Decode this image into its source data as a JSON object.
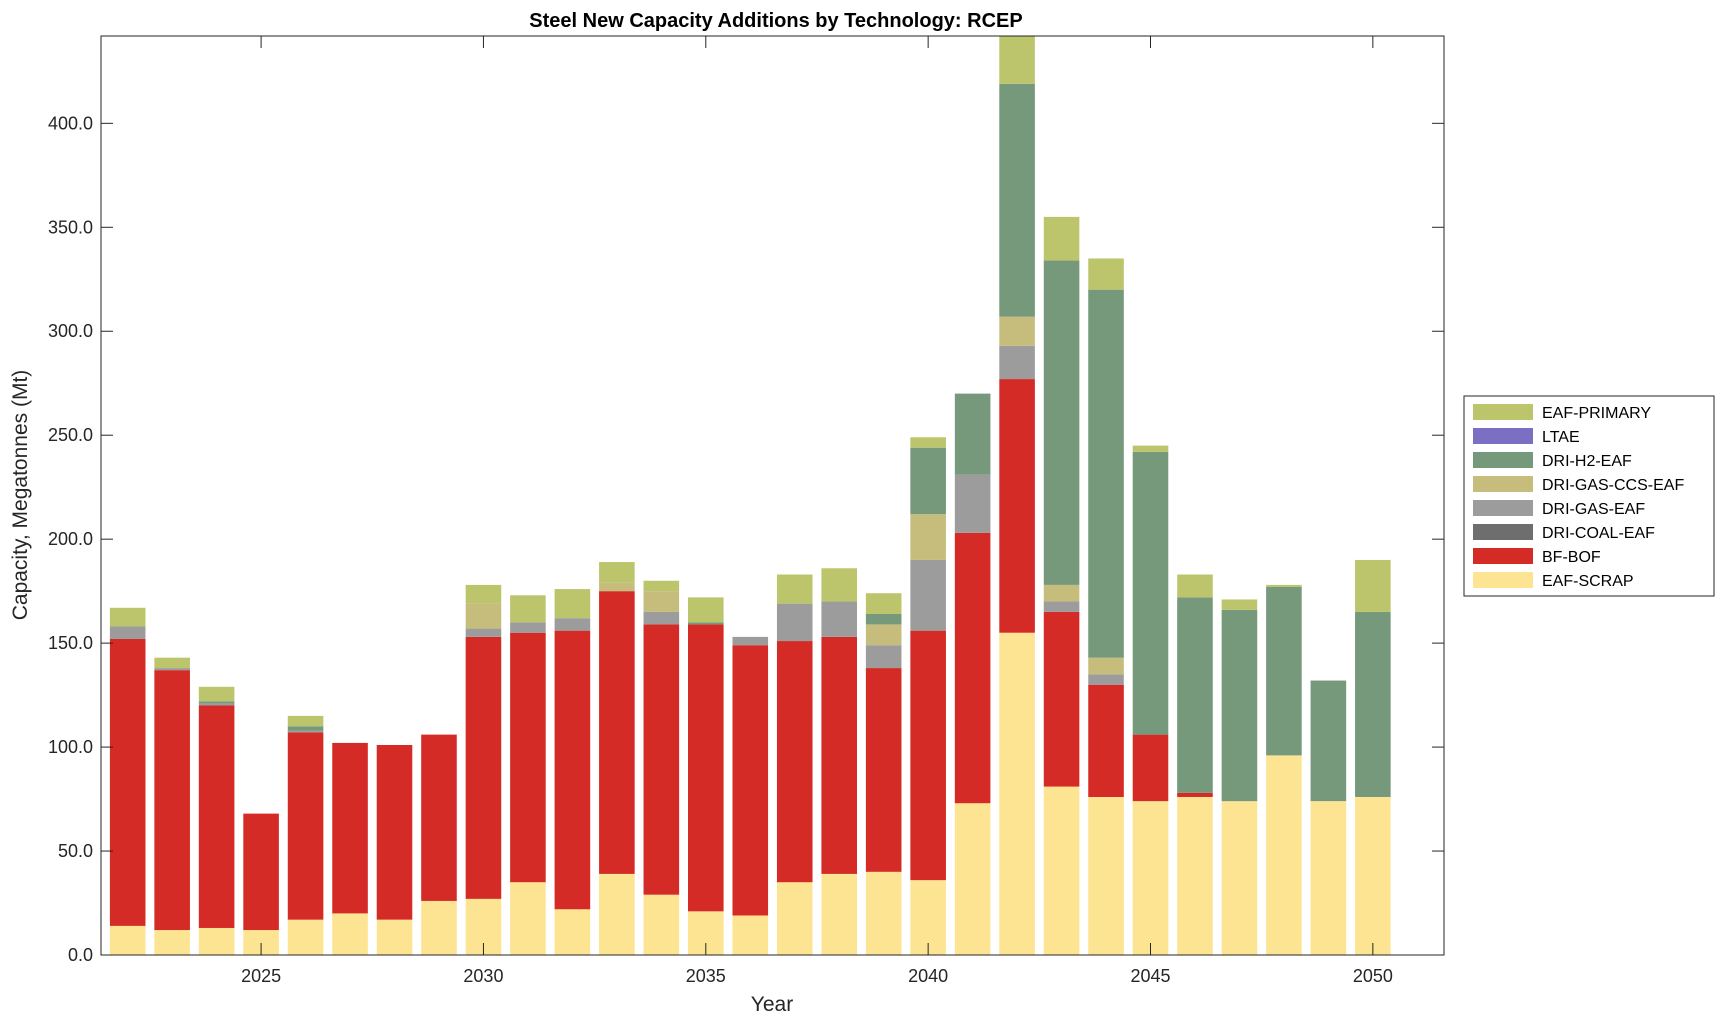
{
  "chart_data": {
    "type": "bar",
    "stacked": true,
    "title": "Steel New Capacity Additions by Technology: RCEP",
    "xlabel": "Year",
    "ylabel": "Capacity, Megatonnes (Mt)",
    "ylim": [
      0,
      442
    ],
    "xlim": [
      2021.4,
      2051.6
    ],
    "yticks": [
      0,
      50,
      100,
      150,
      200,
      250,
      300,
      350,
      400
    ],
    "ytick_labels": [
      "0.0",
      "50.0",
      "100.0",
      "150.0",
      "200.0",
      "250.0",
      "300.0",
      "350.0",
      "400.0"
    ],
    "xticks": [
      2025,
      2030,
      2035,
      2040,
      2045,
      2050
    ],
    "xtick_labels": [
      "2025",
      "2030",
      "2035",
      "2040",
      "2045",
      "2050"
    ],
    "legend_position": "outside-right",
    "years": [
      2022,
      2023,
      2024,
      2025,
      2026,
      2027,
      2028,
      2029,
      2030,
      2031,
      2032,
      2033,
      2034,
      2035,
      2036,
      2037,
      2038,
      2039,
      2040,
      2041,
      2042,
      2043,
      2044,
      2045,
      2046,
      2047,
      2048,
      2049,
      2050
    ],
    "series": [
      {
        "name": "EAF-SCRAP",
        "color": "#FDE493",
        "values": [
          14,
          12,
          13,
          12,
          17,
          20,
          17,
          26,
          27,
          35,
          22,
          39,
          29,
          21,
          19,
          35,
          39,
          40,
          36,
          73,
          155,
          81,
          76,
          74,
          76,
          74,
          96,
          74,
          76
        ]
      },
      {
        "name": "BF-BOF",
        "color": "#D52B26",
        "values": [
          138,
          125,
          107,
          56,
          90,
          82,
          84,
          80,
          126,
          120,
          134,
          136,
          130,
          138,
          130,
          116,
          114,
          98,
          120,
          130,
          122,
          84,
          54,
          32,
          2,
          0,
          0,
          0,
          0
        ]
      },
      {
        "name": "DRI-COAL-EAF",
        "color": "#6E6E6E",
        "values": [
          0,
          0,
          0,
          0,
          0,
          0,
          0,
          0,
          0,
          0,
          0,
          0,
          0,
          0,
          0,
          0,
          0,
          0,
          0,
          0,
          0,
          0,
          0,
          0,
          0,
          0,
          0,
          0,
          0
        ]
      },
      {
        "name": "DRI-GAS-EAF",
        "color": "#9C9C9C",
        "values": [
          6,
          1,
          1,
          0,
          1,
          0,
          0,
          0,
          4,
          5,
          6,
          0,
          6,
          0,
          4,
          18,
          17,
          11,
          34,
          28,
          16,
          5,
          5,
          0,
          0,
          0,
          0,
          0,
          0
        ]
      },
      {
        "name": "DRI-GAS-CCS-EAF",
        "color": "#C6BD7D",
        "values": [
          0,
          0,
          0,
          0,
          0,
          0,
          0,
          0,
          12,
          0,
          0,
          4,
          10,
          0,
          0,
          0,
          0,
          10,
          22,
          0,
          14,
          8,
          8,
          0,
          0,
          0,
          0,
          0,
          0
        ]
      },
      {
        "name": "DRI-H2-EAF",
        "color": "#76987B",
        "values": [
          0,
          0,
          1,
          0,
          2,
          0,
          0,
          0,
          0,
          0,
          0,
          0,
          0,
          1,
          0,
          0,
          0,
          5,
          32,
          39,
          112,
          156,
          177,
          136,
          94,
          92,
          81,
          58,
          89
        ]
      },
      {
        "name": "LTAE",
        "color": "#7A6FC3",
        "values": [
          0,
          0,
          0,
          0,
          0,
          0,
          0,
          0,
          0,
          0,
          0,
          0,
          0,
          0,
          0,
          0,
          0,
          0,
          0,
          0,
          0,
          0,
          0,
          0,
          0,
          0,
          0,
          0,
          0
        ]
      },
      {
        "name": "EAF-PRIMARY",
        "color": "#BCC56C",
        "values": [
          9,
          5,
          7,
          0,
          5,
          0,
          0,
          0,
          9,
          13,
          14,
          10,
          5,
          12,
          0,
          14,
          16,
          10,
          5,
          0,
          25,
          21,
          15,
          3,
          11,
          5,
          1,
          0,
          25
        ]
      }
    ],
    "legend_order": [
      "EAF-PRIMARY",
      "LTAE",
      "DRI-H2-EAF",
      "DRI-GAS-CCS-EAF",
      "DRI-GAS-EAF",
      "DRI-COAL-EAF",
      "BF-BOF",
      "EAF-SCRAP"
    ]
  }
}
